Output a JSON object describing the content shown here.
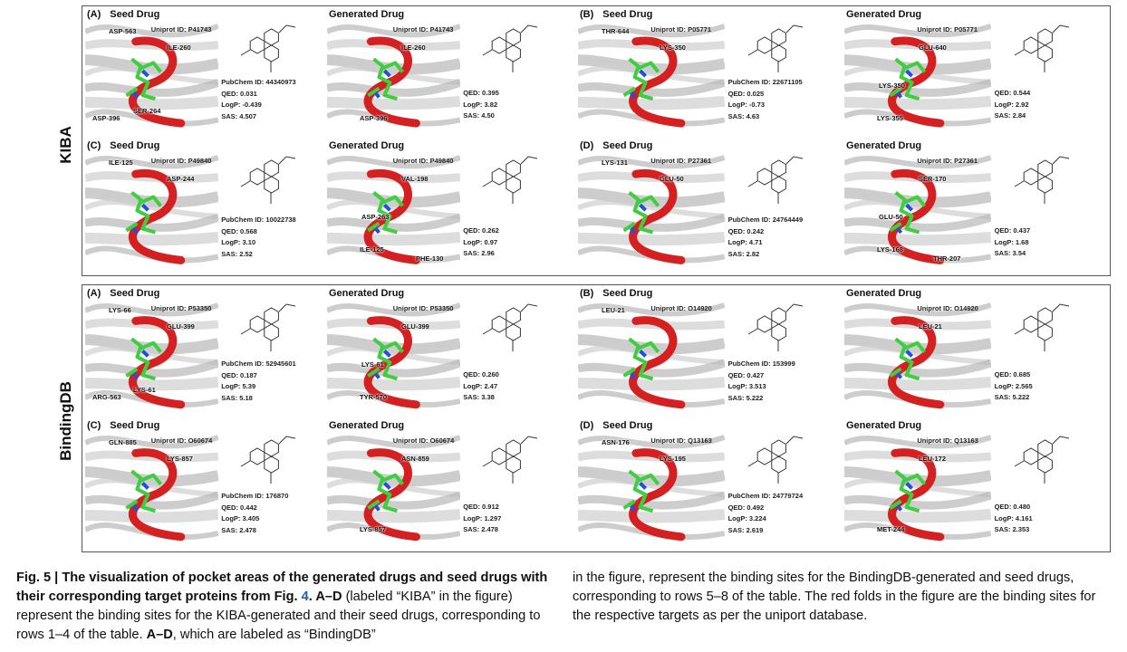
{
  "groups": [
    {
      "label": "KIBA",
      "panels": [
        {
          "letter": "(A)",
          "seed_title": "Seed Drug",
          "gen_title": "Generated Drug",
          "seed_uniprot": "Uniprot ID: P41743",
          "gen_uniprot": "Uniprot ID: P41743",
          "pubchem": "PubChem ID: 44340973",
          "seed_qed": "QED: 0.031",
          "seed_logp": "LogP: -0.439",
          "seed_sas": "SAS: 4.507",
          "gen_qed": "QED: 0.395",
          "gen_logp": "LogP: 3.82",
          "gen_sas": "SAS: 4.50",
          "seed_residues": [
            "ASP-563",
            "ILE-260",
            "SER-264",
            "ASP-396"
          ],
          "gen_residues": [
            "ILE-260",
            "ASP-396"
          ]
        },
        {
          "letter": "(B)",
          "seed_title": "Seed Drug",
          "gen_title": "Generated Drug",
          "seed_uniprot": "Uniprot ID: P05771",
          "gen_uniprot": "Uniprot ID: P05771",
          "pubchem": "PubChem ID: 22671105",
          "seed_qed": "QED: 0.025",
          "seed_logp": "LogP: -0.73",
          "seed_sas": "SAS: 4.63",
          "gen_qed": "QED: 0.544",
          "gen_logp": "LogP: 2.92",
          "gen_sas": "SAS: 2.84",
          "seed_residues": [
            "THR-644",
            "LYS-350"
          ],
          "gen_residues": [
            "GLU-640",
            "LYS-355",
            "LYS-350"
          ]
        },
        {
          "letter": "(C)",
          "seed_title": "Seed Drug",
          "gen_title": "Generated Drug",
          "seed_uniprot": "Uniprot ID: P49840",
          "gen_uniprot": "Uniprot ID: P49840",
          "pubchem": "PubChem ID: 10022738",
          "seed_qed": "QED: 0.568",
          "seed_logp": "LogP: 3.10",
          "seed_sas": "SAS: 2.52",
          "gen_qed": "QED: 0.262",
          "gen_logp": "LogP: 0.97",
          "gen_sas": "SAS: 2.96",
          "seed_residues": [
            "ILE-125",
            "ASP-244"
          ],
          "gen_residues": [
            "VAL-198",
            "ILE-125",
            "ASP-263",
            "PHE-130"
          ]
        },
        {
          "letter": "(D)",
          "seed_title": "Seed Drug",
          "gen_title": "Generated Drug",
          "seed_uniprot": "Uniprot ID: P27361",
          "gen_uniprot": "Uniprot ID: P27361",
          "pubchem": "PubChem ID: 24764449",
          "seed_qed": "QED: 0.242",
          "seed_logp": "LogP: 4.71",
          "seed_sas": "SAS: 2.82",
          "gen_qed": "QED: 0.437",
          "gen_logp": "LogP: 1.68",
          "gen_sas": "SAS: 3.54",
          "seed_residues": [
            "LYS-131",
            "GLU-50"
          ],
          "gen_residues": [
            "SER-170",
            "LYS-168",
            "GLU-50",
            "THR-207"
          ]
        }
      ]
    },
    {
      "label": "BindingDB",
      "panels": [
        {
          "letter": "(A)",
          "seed_title": "Seed Drug",
          "gen_title": "Generated Drug",
          "seed_uniprot": "Uniprot ID: P53350",
          "gen_uniprot": "Uniprot ID: P53350",
          "pubchem": "PubChem ID: 52945601",
          "seed_qed": "QED: 0.187",
          "seed_logp": "LogP: 5.39",
          "seed_sas": "SAS: 5.18",
          "gen_qed": "QED: 0.260",
          "gen_logp": "LogP: 2.47",
          "gen_sas": "SAS: 3.38",
          "seed_residues": [
            "LYS-66",
            "GLU-399",
            "LYS-61",
            "ARG-563"
          ],
          "gen_residues": [
            "GLU-399",
            "TYR-570",
            "LYS-61"
          ]
        },
        {
          "letter": "(B)",
          "seed_title": "Seed Drug",
          "gen_title": "Generated Drug",
          "seed_uniprot": "Uniprot ID: O14920",
          "gen_uniprot": "Uniprot ID: O14920",
          "pubchem": "PubChem ID: 153999",
          "seed_qed": "QED: 0.427",
          "seed_logp": "LogP: 3.513",
          "seed_sas": "SAS: 5.222",
          "gen_qed": "QED: 0.685",
          "gen_logp": "LogP: 2.565",
          "gen_sas": "SAS: 5.222",
          "seed_residues": [
            "LEU-21"
          ],
          "gen_residues": [
            "LEU-21"
          ]
        },
        {
          "letter": "(C)",
          "seed_title": "Seed Drug",
          "gen_title": "Generated Drug",
          "seed_uniprot": "Uniprot ID: O60674",
          "gen_uniprot": "Uniprot ID: O60674",
          "pubchem": "PubChem ID: 176870",
          "seed_qed": "QED: 0.442",
          "seed_logp": "LogP: 3.405",
          "seed_sas": "SAS: 2.478",
          "gen_qed": "QED: 0.912",
          "gen_logp": "LogP: 1.297",
          "gen_sas": "SAS: 2.478",
          "seed_residues": [
            "GLN-885",
            "LYS-857"
          ],
          "gen_residues": [
            "ASN-859",
            "LYS-857"
          ]
        },
        {
          "letter": "(D)",
          "seed_title": "Seed Drug",
          "gen_title": "Generated Drug",
          "seed_uniprot": "Uniprot ID: Q13163",
          "gen_uniprot": "Uniprot ID: Q13163",
          "pubchem": "PubChem ID: 24779724",
          "seed_qed": "QED: 0.492",
          "seed_logp": "LogP: 3.224",
          "seed_sas": "SAS: 2.619",
          "gen_qed": "QED: 0.480",
          "gen_logp": "LogP: 4.161",
          "gen_sas": "SAS: 2.353",
          "seed_residues": [
            "ASN-176",
            "LYS-195"
          ],
          "gen_residues": [
            "LEU-172",
            "MET-244"
          ]
        }
      ]
    }
  ],
  "caption": {
    "fig_label": "Fig. 5 | ",
    "fig_title": "The visualization of pocket areas of the generated drugs and seed drugs with their corresponding target proteins from Fig. ",
    "fig_ref": "4",
    "fig_title_end": ". ",
    "ad1": "A–D",
    "p1": " (labeled “KIBA” in the figure) represent the binding sites for the KIBA-generated and their seed drugs, corresponding to rows 1–4 of the table. ",
    "ad2": "A–D",
    "p2": ", which are labeled as “BindingDB” in the figure, represent the binding sites for the BindingDB-generated and seed drugs, corresponding to rows 5–8 of the table. The red folds in the figure are the binding sites for the respective targets as per the uniport database."
  }
}
